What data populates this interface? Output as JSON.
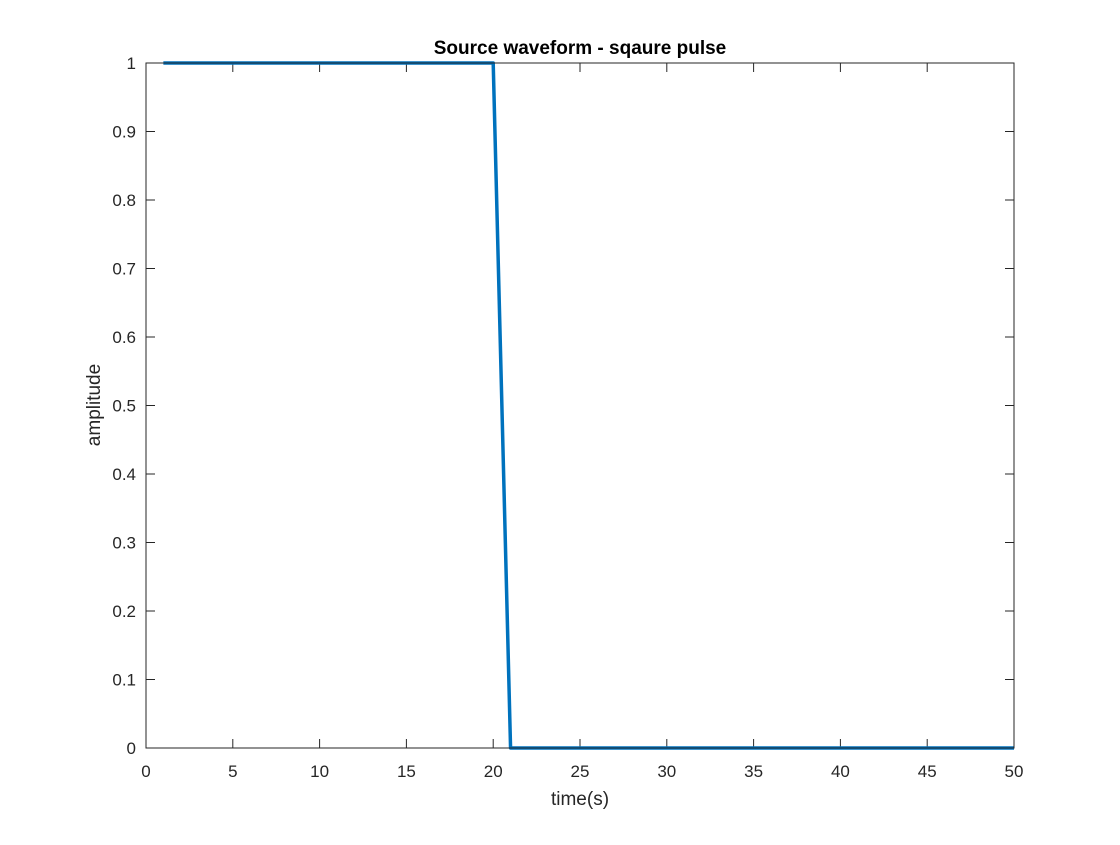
{
  "chart_data": {
    "type": "line",
    "title": "Source waveform - sqaure pulse",
    "xlabel": "time(s)",
    "ylabel": "amplitude",
    "xlim": [
      0,
      50
    ],
    "ylim": [
      0,
      1
    ],
    "xticks": [
      0,
      5,
      10,
      15,
      20,
      25,
      30,
      35,
      40,
      45,
      50
    ],
    "yticks": [
      0,
      0.1,
      0.2,
      0.3,
      0.4,
      0.5,
      0.6,
      0.7,
      0.8,
      0.9,
      1
    ],
    "xtick_labels": [
      "0",
      "5",
      "10",
      "15",
      "20",
      "25",
      "30",
      "35",
      "40",
      "45",
      "50"
    ],
    "ytick_labels": [
      "0",
      "0.1",
      "0.2",
      "0.3",
      "0.4",
      "0.5",
      "0.6",
      "0.7",
      "0.8",
      "0.9",
      "1"
    ],
    "grid": false,
    "series": [
      {
        "x": [
          1,
          2,
          3,
          4,
          5,
          6,
          7,
          8,
          9,
          10,
          11,
          12,
          13,
          14,
          15,
          16,
          17,
          18,
          19,
          20,
          21,
          22,
          23,
          24,
          25,
          26,
          27,
          28,
          29,
          30,
          31,
          32,
          33,
          34,
          35,
          36,
          37,
          38,
          39,
          40,
          41,
          42,
          43,
          44,
          45,
          46,
          47,
          48,
          49,
          50
        ],
        "y": [
          1,
          1,
          1,
          1,
          1,
          1,
          1,
          1,
          1,
          1,
          1,
          1,
          1,
          1,
          1,
          1,
          1,
          1,
          1,
          1,
          0,
          0,
          0,
          0,
          0,
          0,
          0,
          0,
          0,
          0,
          0,
          0,
          0,
          0,
          0,
          0,
          0,
          0,
          0,
          0,
          0,
          0,
          0,
          0,
          0,
          0,
          0,
          0,
          0,
          0
        ],
        "color": "#0072BD"
      }
    ]
  }
}
